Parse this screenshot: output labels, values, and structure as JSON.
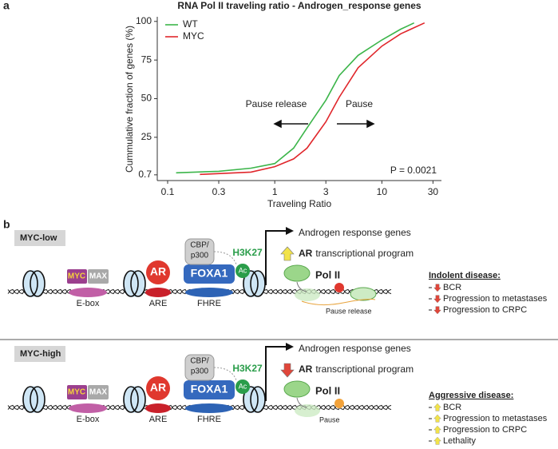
{
  "panel_a_label": "a",
  "chart_data": {
    "type": "line",
    "title": "RNA Pol II traveling ratio - Androgen_response genes",
    "x_label": "Traveling Ratio",
    "y_label": "Cummulative fraction of genes (%)",
    "xscale": "log",
    "xlim": [
      0.08,
      36
    ],
    "xticks": [
      0.1,
      0.3,
      1,
      3,
      10,
      30
    ],
    "ylim": [
      -3,
      103
    ],
    "yticks": [
      0.7,
      25,
      50,
      75,
      100
    ],
    "legend": "upper left",
    "series": [
      {
        "name": "WT",
        "color": "#3cb54a",
        "x": [
          0.12,
          0.3,
          0.6,
          1,
          1.5,
          2,
          3,
          4,
          6,
          10,
          15,
          20
        ],
        "values": [
          2,
          3,
          5,
          8,
          18,
          31,
          49,
          65,
          78,
          88,
          95,
          99
        ]
      },
      {
        "name": "MYC",
        "color": "#e0262b",
        "x": [
          0.2,
          0.6,
          1,
          1.5,
          2,
          3,
          4,
          6,
          10,
          15,
          25
        ],
        "values": [
          1,
          2.5,
          6,
          11,
          18,
          35,
          51,
          70,
          84,
          92,
          99
        ]
      }
    ],
    "annotations": [
      "Pause release",
      "Pause",
      "P = 0.0021"
    ]
  },
  "panel_b": {
    "label": "b",
    "rows": [
      {
        "tag": "MYC-low",
        "genes": "Androgen response genes",
        "program_bold": "AR",
        "program": "transcriptional program",
        "myc": "MYC",
        "max": "MAX",
        "ebox": "E-box",
        "ar": "AR",
        "are": "ARE",
        "foxa1": "FOXA1",
        "fhre": "FHRE",
        "cbp": [
          "CBP/",
          "p300"
        ],
        "h3k27": "H3K27",
        "ac": "Ac",
        "pol": "Pol II",
        "pause": "Pause release",
        "outcome": {
          "title": "Indolent disease:",
          "items": [
            "BCR",
            "Progression to metastases",
            "Progression to CRPC"
          ]
        }
      },
      {
        "tag": "MYC-high",
        "genes": "Androgen response genes",
        "program_bold": "AR",
        "program": "transcriptional program",
        "myc": "MYC",
        "max": "MAX",
        "ebox": "E-box",
        "ar": "AR",
        "are": "ARE",
        "foxa1": "FOXA1",
        "fhre": "FHRE",
        "cbp": [
          "CBP/",
          "p300"
        ],
        "h3k27": "H3K27",
        "ac": "Ac",
        "pol": "Pol II",
        "pause": "Pause",
        "outcome": {
          "title": "Aggressive disease:",
          "items": [
            "BCR",
            "Progression to metastases",
            "Progression to CRPC",
            "Lethality"
          ]
        }
      }
    ]
  }
}
